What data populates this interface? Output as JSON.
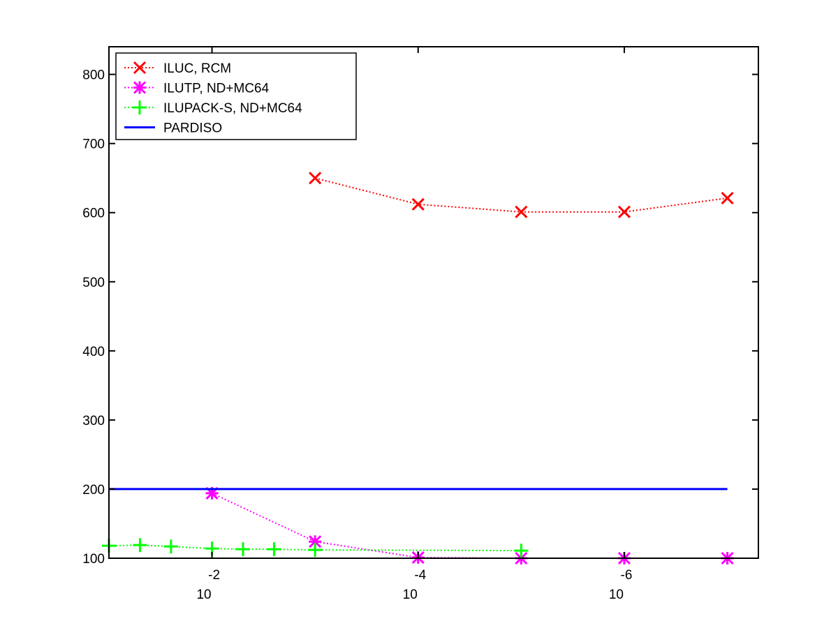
{
  "chart_data": {
    "type": "line",
    "title": "",
    "xlabel": "",
    "ylabel": "",
    "x_scale": "log",
    "x_axis_reversed": true,
    "xlim": [
      0.1,
      5e-08
    ],
    "ylim": [
      100,
      840
    ],
    "x_ticks": [
      {
        "value": 0.01,
        "base": "10",
        "exponent": "-2"
      },
      {
        "value": 0.0001,
        "base": "10",
        "exponent": "-4"
      },
      {
        "value": 1e-06,
        "base": "10",
        "exponent": "-6"
      }
    ],
    "y_ticks": [
      {
        "value": 100,
        "label": "100"
      },
      {
        "value": 200,
        "label": "200"
      },
      {
        "value": 300,
        "label": "300"
      },
      {
        "value": 400,
        "label": "400"
      },
      {
        "value": 500,
        "label": "500"
      },
      {
        "value": 600,
        "label": "600"
      },
      {
        "value": 700,
        "label": "700"
      },
      {
        "value": 800,
        "label": "800"
      }
    ],
    "grid": false,
    "legend_position": "top-left",
    "series": [
      {
        "name": "ILUC, RCM",
        "color": "#ff0000",
        "marker": "x",
        "line_style": "dotted",
        "points": [
          {
            "x": 0.001,
            "y": 650
          },
          {
            "x": 0.0001,
            "y": 612
          },
          {
            "x": 1e-05,
            "y": 601
          },
          {
            "x": 1e-06,
            "y": 601
          },
          {
            "x": 1e-07,
            "y": 621
          }
        ]
      },
      {
        "name": "ILUTP,  ND+MC64",
        "color": "#ff00ff",
        "marker": "asterisk",
        "line_style": "dotted",
        "points": [
          {
            "x": 0.01,
            "y": 194
          },
          {
            "x": 0.001,
            "y": 124
          },
          {
            "x": 0.0001,
            "y": 101
          },
          {
            "x": 1e-05,
            "y": 100
          },
          {
            "x": 1e-06,
            "y": 100
          },
          {
            "x": 1e-07,
            "y": 100
          }
        ]
      },
      {
        "name": "ILUPACK-S, ND+MC64",
        "color": "#00ff00",
        "marker": "plus",
        "line_style": "dotted",
        "points": [
          {
            "x": 0.1,
            "y": 118
          },
          {
            "x": 0.05,
            "y": 119
          },
          {
            "x": 0.025,
            "y": 117
          },
          {
            "x": 0.01,
            "y": 114
          },
          {
            "x": 0.005,
            "y": 113
          },
          {
            "x": 0.0025,
            "y": 113
          },
          {
            "x": 0.001,
            "y": 112
          },
          {
            "x": 1e-05,
            "y": 111
          }
        ]
      },
      {
        "name": "PARDISO",
        "color": "#0000ff",
        "marker": "none",
        "line_style": "solid",
        "points": [
          {
            "x": 0.1,
            "y": 200
          },
          {
            "x": 1e-07,
            "y": 200
          }
        ]
      }
    ]
  }
}
